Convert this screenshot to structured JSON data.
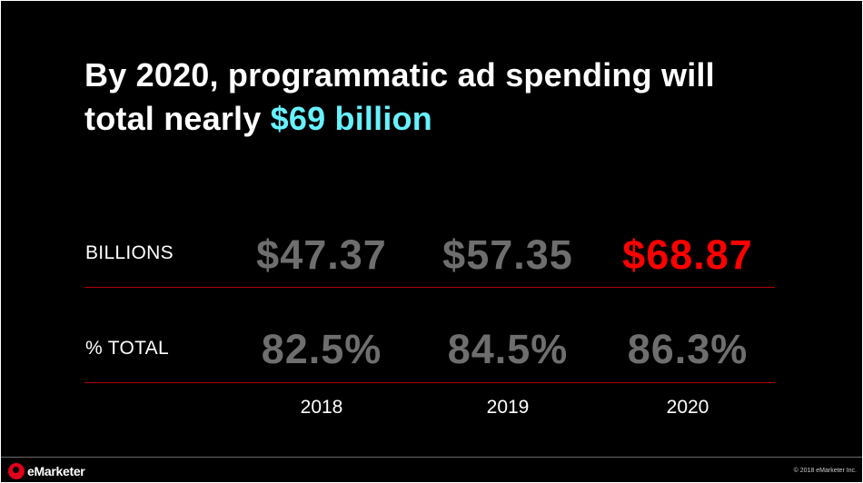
{
  "title": {
    "line1": "By 2020, programmatic ad spending will",
    "line2_prefix": "total nearly ",
    "line2_highlight": "$69 billion"
  },
  "rows": {
    "billions": {
      "label": "BILLIONS",
      "values": [
        "$47.37",
        "$57.35",
        "$68.87"
      ]
    },
    "pct_total": {
      "label": "% TOTAL",
      "values": [
        "82.5%",
        "84.5%",
        "86.3%"
      ]
    }
  },
  "years": [
    "2018",
    "2019",
    "2020"
  ],
  "footer": {
    "brand": "eMarketer",
    "copyright": "© 2018 eMarketer Inc."
  },
  "colors": {
    "background": "#000000",
    "highlight": "#66f2ff",
    "value_gray": "#6e6e6e",
    "value_accent": "#ff0000",
    "rule": "#b00000",
    "text": "#ffffff"
  }
}
